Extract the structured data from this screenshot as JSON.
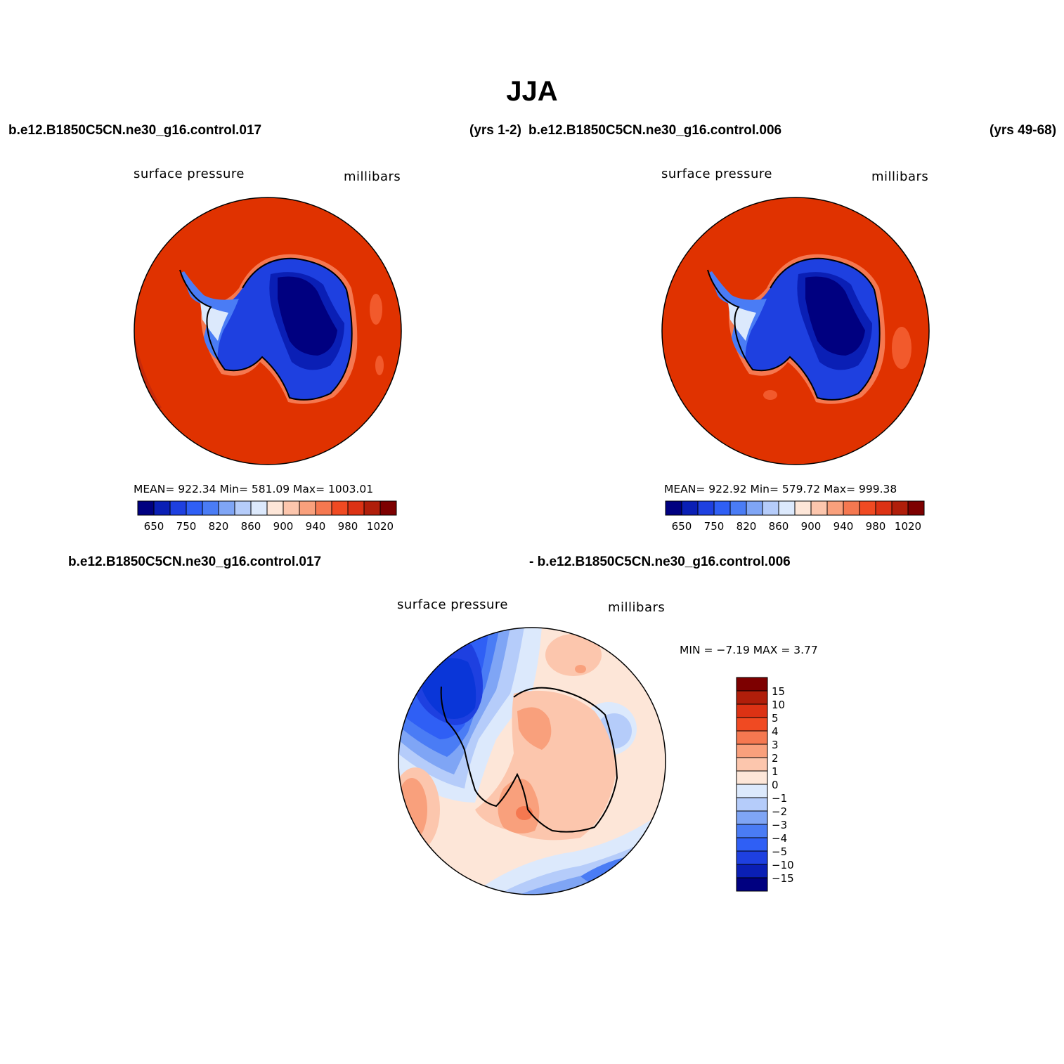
{
  "figure": {
    "season_title": "JJA",
    "case_a_label": "b.e12.B1850C5CN.ne30_g16.control.017",
    "case_a_years": "(yrs 1-2)",
    "case_b_label": "b.e12.B1850C5CN.ne30_g16.control.006",
    "case_b_years": "(yrs 49-68)",
    "diff_label_a": "b.e12.B1850C5CN.ne30_g16.control.017",
    "diff_label_b": "- b.e12.B1850C5CN.ne30_g16.control.006"
  },
  "panels": [
    {
      "variable": "surface pressure",
      "units": "millibars",
      "stats_text": "MEAN= 922.34   Min= 581.09   Max= 1003.01",
      "mean": 922.34,
      "min": 581.09,
      "max": 1003.01
    },
    {
      "variable": "surface pressure",
      "units": "millibars",
      "stats_text": "MEAN= 922.92   Min= 579.72   Max= 999.38",
      "mean": 922.92,
      "min": 579.72,
      "max": 999.38
    },
    {
      "variable": "surface pressure",
      "units": "millibars",
      "stats_text": "MIN =   −7.19  MAX =    3.77",
      "min": -7.19,
      "max": 3.77
    }
  ],
  "colorbar_abs": {
    "colors": [
      "#000080",
      "#0a1fb5",
      "#1e40e0",
      "#2f5ff5",
      "#4a7cf5",
      "#7fa5f5",
      "#b5ccfa",
      "#dce9fc",
      "#fde6d8",
      "#fcc6ad",
      "#f9a07c",
      "#f57850",
      "#f04a22",
      "#dc3214",
      "#b01e0a",
      "#7d0000"
    ],
    "tick_labels": [
      "650",
      "750",
      "820",
      "860",
      "900",
      "940",
      "980",
      "1020"
    ]
  },
  "colorbar_diff": {
    "colors": [
      "#7d0000",
      "#b01e0a",
      "#dc3214",
      "#f04a22",
      "#f57850",
      "#f9a07c",
      "#fcc6ad",
      "#fde6d8",
      "#dce9fc",
      "#b5ccfa",
      "#7fa5f5",
      "#4a7cf5",
      "#2f5ff5",
      "#1e40e0",
      "#0a1fb5",
      "#000080"
    ],
    "tick_labels": [
      "15",
      "10",
      "5",
      "4",
      "3",
      "2",
      "1",
      "0",
      "−1",
      "−2",
      "−3",
      "−4",
      "−5",
      "−10",
      "−15"
    ]
  }
}
